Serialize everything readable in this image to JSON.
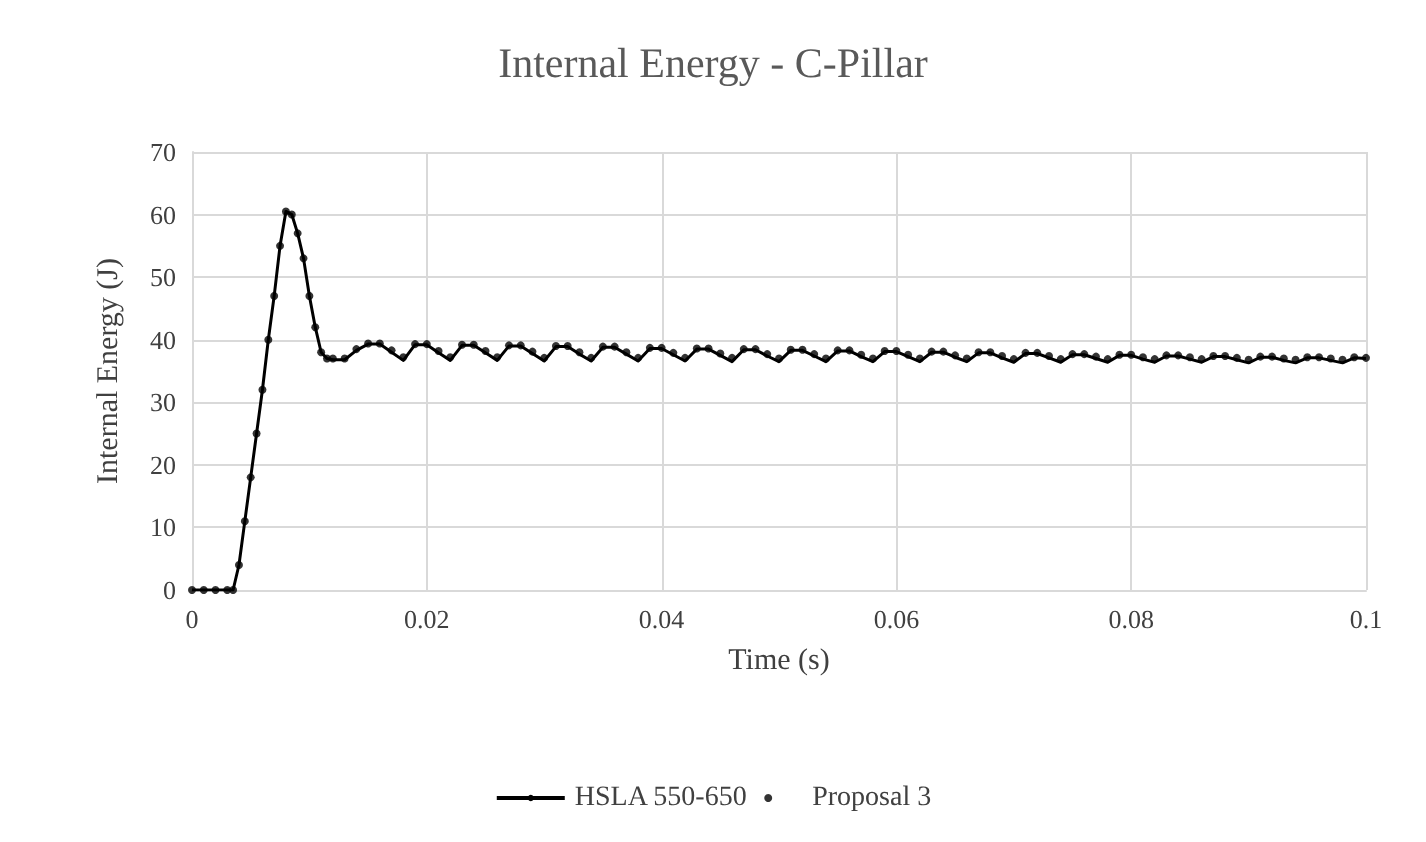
{
  "chart_data": {
    "type": "line",
    "title": "Internal Energy - C-Pillar",
    "xlabel": "Time (s)",
    "ylabel": "Internal Energy (J)",
    "xlim": [
      0,
      0.1
    ],
    "xticks": [
      0,
      0.02,
      0.04,
      0.06,
      0.08,
      0.1
    ],
    "ylim": [
      0,
      70
    ],
    "yticks": [
      0,
      10,
      20,
      30,
      40,
      50,
      60,
      70
    ],
    "grid": true,
    "legend": "bottom",
    "x": [
      0,
      0.001,
      0.002,
      0.003,
      0.0035,
      0.004,
      0.0045,
      0.005,
      0.0055,
      0.006,
      0.0065,
      0.007,
      0.0075,
      0.008,
      0.0085,
      0.009,
      0.0095,
      0.01,
      0.0105,
      0.011,
      0.0115,
      0.012,
      0.013,
      0.014,
      0.015,
      0.016,
      0.017,
      0.018,
      0.019,
      0.02,
      0.021,
      0.022,
      0.023,
      0.024,
      0.025,
      0.026,
      0.027,
      0.028,
      0.029,
      0.03,
      0.031,
      0.032,
      0.033,
      0.034,
      0.035,
      0.036,
      0.037,
      0.038,
      0.039,
      0.04,
      0.041,
      0.042,
      0.043,
      0.044,
      0.045,
      0.046,
      0.047,
      0.048,
      0.049,
      0.05,
      0.051,
      0.052,
      0.053,
      0.054,
      0.055,
      0.056,
      0.057,
      0.058,
      0.059,
      0.06,
      0.061,
      0.062,
      0.063,
      0.064,
      0.065,
      0.066,
      0.067,
      0.068,
      0.069,
      0.07,
      0.071,
      0.072,
      0.073,
      0.074,
      0.075,
      0.076,
      0.077,
      0.078,
      0.079,
      0.08,
      0.081,
      0.082,
      0.083,
      0.084,
      0.085,
      0.086,
      0.087,
      0.088,
      0.089,
      0.09,
      0.091,
      0.092,
      0.093,
      0.094,
      0.095,
      0.096,
      0.097,
      0.098,
      0.099,
      0.1
    ],
    "series": [
      {
        "name": "HSLA 550-650",
        "color": "#000000",
        "marker": "none",
        "values": [
          0,
          0,
          0,
          0,
          0,
          4,
          11,
          18,
          25,
          32,
          40,
          47,
          55,
          60.5,
          60,
          57,
          53,
          47,
          42,
          38,
          37,
          36.8,
          36.8,
          38.3,
          39.3,
          39.3,
          38,
          36.7,
          39.2,
          39.2,
          37.9,
          36.7,
          39.1,
          39.1,
          37.9,
          36.7,
          39,
          39,
          37.8,
          36.6,
          38.9,
          38.9,
          37.7,
          36.6,
          38.8,
          38.8,
          37.7,
          36.6,
          38.6,
          38.6,
          37.6,
          36.6,
          38.5,
          38.5,
          37.5,
          36.5,
          38.4,
          38.4,
          37.4,
          36.5,
          38.3,
          38.3,
          37.4,
          36.5,
          38.2,
          38.2,
          37.3,
          36.5,
          38.1,
          38.1,
          37.3,
          36.5,
          38,
          38,
          37.2,
          36.5,
          37.9,
          37.9,
          37.1,
          36.4,
          37.8,
          37.8,
          37.1,
          36.4,
          37.6,
          37.6,
          37,
          36.4,
          37.5,
          37.5,
          36.9,
          36.4,
          37.4,
          37.4,
          36.9,
          36.4,
          37.3,
          37.3,
          36.8,
          36.3,
          37.2,
          37.2,
          36.7,
          36.3,
          37.1,
          37.1,
          36.7,
          36.3,
          37.1,
          37
        ]
      },
      {
        "name": "Proposal 3",
        "type": "scatter",
        "color": "#000000",
        "marker": "circle",
        "values": [
          0,
          0,
          0,
          0,
          0,
          4,
          11,
          18,
          25,
          32,
          40,
          47,
          55,
          60.5,
          60,
          57,
          53,
          47,
          42,
          38,
          37,
          37,
          37,
          38.5,
          39.4,
          39.4,
          38.3,
          37.2,
          39.3,
          39.3,
          38.2,
          37.2,
          39.2,
          39.2,
          38.2,
          37.2,
          39.1,
          39.1,
          38.1,
          37.1,
          39,
          39,
          38,
          37.1,
          38.9,
          38.9,
          38,
          37.1,
          38.7,
          38.7,
          37.9,
          37.1,
          38.6,
          38.6,
          37.8,
          37.1,
          38.5,
          38.5,
          37.7,
          37,
          38.4,
          38.4,
          37.7,
          37,
          38.3,
          38.3,
          37.6,
          37,
          38.2,
          38.2,
          37.6,
          37,
          38.1,
          38.1,
          37.5,
          37,
          38,
          38,
          37.4,
          36.9,
          37.9,
          37.9,
          37.4,
          36.9,
          37.7,
          37.7,
          37.3,
          36.9,
          37.6,
          37.6,
          37.2,
          36.9,
          37.5,
          37.5,
          37.2,
          36.9,
          37.4,
          37.4,
          37.1,
          36.8,
          37.3,
          37.3,
          37,
          36.8,
          37.2,
          37.2,
          37,
          36.8,
          37.2,
          37.1
        ]
      }
    ]
  }
}
